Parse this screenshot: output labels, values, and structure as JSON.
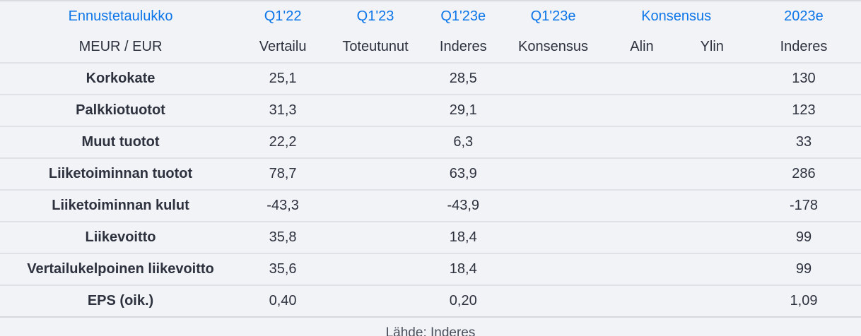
{
  "colors": {
    "accent_blue": "#0d76e8",
    "text_dark": "#2d323e",
    "background": "#f2f3f7",
    "row_separator": "#dfe1e7"
  },
  "table": {
    "title": "Ennustetaulukko",
    "unit_label": "MEUR / EUR",
    "period_headers": {
      "q1_22": "Q1'22",
      "q1_23": "Q1'23",
      "q1_23e_inderes": "Q1'23e",
      "q1_23e_konsensus": "Q1'23e",
      "konsensus_group": "Konsensus",
      "y2023e": "2023e"
    },
    "sub_headers": {
      "vertailu": "Vertailu",
      "toteutunut": "Toteutunut",
      "inderes": "Inderes",
      "konsensus": "Konsensus",
      "alin": "Alin",
      "ylin": "Ylin",
      "inderes_2023": "Inderes"
    },
    "rows": [
      {
        "label": "Korkokate",
        "values": [
          "25,1",
          "",
          "28,5",
          "",
          "",
          "",
          "130"
        ]
      },
      {
        "label": "Palkkiotuotot",
        "values": [
          "31,3",
          "",
          "29,1",
          "",
          "",
          "",
          "123"
        ]
      },
      {
        "label": "Muut tuotot",
        "values": [
          "22,2",
          "",
          "6,3",
          "",
          "",
          "",
          "33"
        ]
      },
      {
        "label": "Liiketoiminnan tuotot",
        "values": [
          "78,7",
          "",
          "63,9",
          "",
          "",
          "",
          "286"
        ]
      },
      {
        "label": "Liiketoiminnan kulut",
        "values": [
          "-43,3",
          "",
          "-43,9",
          "",
          "",
          "",
          "-178"
        ]
      },
      {
        "label": "Liikevoitto",
        "values": [
          "35,8",
          "",
          "18,4",
          "",
          "",
          "",
          "99"
        ]
      },
      {
        "label": "Vertailukelpoinen liikevoitto",
        "values": [
          "35,6",
          "",
          "18,4",
          "",
          "",
          "",
          "99"
        ]
      },
      {
        "label": "EPS (oik.)",
        "values": [
          "0,40",
          "",
          "0,20",
          "",
          "",
          "",
          "1,09"
        ]
      }
    ],
    "source_note": "Lähde: Inderes"
  }
}
